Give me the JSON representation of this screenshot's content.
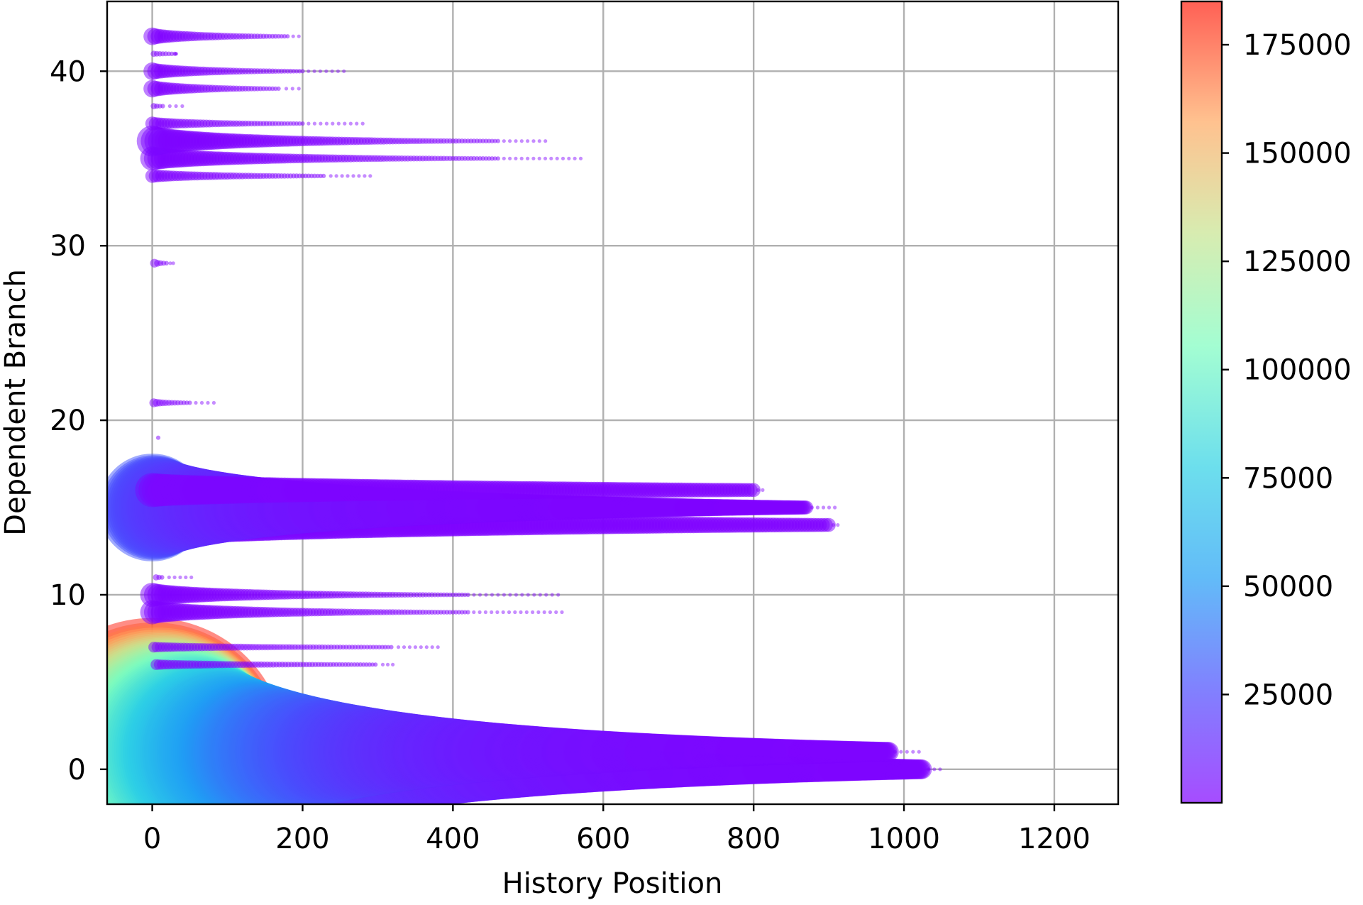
{
  "chart_data": {
    "type": "scatter",
    "title": "",
    "xlabel": "History Position",
    "ylabel": "Dependent Branch",
    "xlim": [
      -60,
      1285
    ],
    "ylim": [
      -2,
      44
    ],
    "xticks": [
      0,
      200,
      400,
      600,
      800,
      1000,
      1200
    ],
    "xtick_labels": [
      "0",
      "200",
      "400",
      "600",
      "800",
      "1000",
      "1200"
    ],
    "yticks": [
      0,
      10,
      20,
      30,
      40
    ],
    "ytick_labels": [
      "0",
      "10",
      "20",
      "30",
      "40"
    ],
    "grid": true,
    "colormap": "rainbow",
    "colorbar": {
      "min": 0,
      "max": 185000,
      "ticks": [
        25000,
        50000,
        75000,
        100000,
        125000,
        150000,
        175000
      ],
      "tick_labels": [
        "25000",
        "50000",
        "75000",
        "100000",
        "125000",
        "150000",
        "175000"
      ]
    },
    "rows": [
      {
        "branch": 0,
        "x_start": 0,
        "x_end": 1025,
        "x_sparse_end": 1048,
        "count_start": 185000,
        "count_end": 1000
      },
      {
        "branch": 1,
        "x_start": 0,
        "x_end": 980,
        "x_sparse_end": 1020,
        "count_start": 185000,
        "count_end": 1000
      },
      {
        "branch": 6,
        "x_start": 5,
        "x_end": 300,
        "x_sparse_end": 320,
        "count_start": 300,
        "count_end": 50
      },
      {
        "branch": 7,
        "x_start": 2,
        "x_end": 320,
        "x_sparse_end": 380,
        "count_start": 300,
        "count_end": 50
      },
      {
        "branch": 9,
        "x_start": 0,
        "x_end": 420,
        "x_sparse_end": 545,
        "count_start": 1500,
        "count_end": 50
      },
      {
        "branch": 10,
        "x_start": 0,
        "x_end": 420,
        "x_sparse_end": 540,
        "count_start": 1500,
        "count_end": 50
      },
      {
        "branch": 11,
        "x_start": 5,
        "x_end": 15,
        "x_sparse_end": 52,
        "count_start": 100,
        "count_end": 50
      },
      {
        "branch": 14,
        "x_start": 0,
        "x_end": 900,
        "x_sparse_end": 912,
        "count_start": 5000,
        "count_end": 500
      },
      {
        "branch": 15,
        "x_start": 0,
        "x_end": 870,
        "x_sparse_end": 908,
        "count_start": 30000,
        "count_end": 500
      },
      {
        "branch": 16,
        "x_start": 0,
        "x_end": 800,
        "x_sparse_end": 812,
        "count_start": 3000,
        "count_end": 500
      },
      {
        "branch": 19,
        "x_start": 8,
        "x_end": 8,
        "x_sparse_end": 8,
        "count_start": 50,
        "count_end": 50
      },
      {
        "branch": 21,
        "x_start": 2,
        "x_end": 50,
        "x_sparse_end": 82,
        "count_start": 200,
        "count_end": 50
      },
      {
        "branch": 29,
        "x_start": 3,
        "x_end": 20,
        "x_sparse_end": 28,
        "count_start": 200,
        "count_end": 50
      },
      {
        "branch": 34,
        "x_start": 0,
        "x_end": 230,
        "x_sparse_end": 290,
        "count_start": 500,
        "count_end": 50
      },
      {
        "branch": 35,
        "x_start": 0,
        "x_end": 460,
        "x_sparse_end": 570,
        "count_start": 1500,
        "count_end": 50
      },
      {
        "branch": 36,
        "x_start": 0,
        "x_end": 460,
        "x_sparse_end": 523,
        "count_start": 2500,
        "count_end": 50
      },
      {
        "branch": 37,
        "x_start": 0,
        "x_end": 200,
        "x_sparse_end": 280,
        "count_start": 500,
        "count_end": 50
      },
      {
        "branch": 38,
        "x_start": 2,
        "x_end": 15,
        "x_sparse_end": 40,
        "count_start": 100,
        "count_end": 50
      },
      {
        "branch": 39,
        "x_start": 0,
        "x_end": 170,
        "x_sparse_end": 195,
        "count_start": 800,
        "count_end": 50
      },
      {
        "branch": 40,
        "x_start": 0,
        "x_end": 200,
        "x_sparse_end": 255,
        "count_start": 800,
        "count_end": 50
      },
      {
        "branch": 41,
        "x_start": 2,
        "x_end": 30,
        "x_sparse_end": 32,
        "count_start": 100,
        "count_end": 50
      },
      {
        "branch": 42,
        "x_start": 0,
        "x_end": 180,
        "x_sparse_end": 195,
        "count_start": 800,
        "count_end": 50
      }
    ]
  }
}
